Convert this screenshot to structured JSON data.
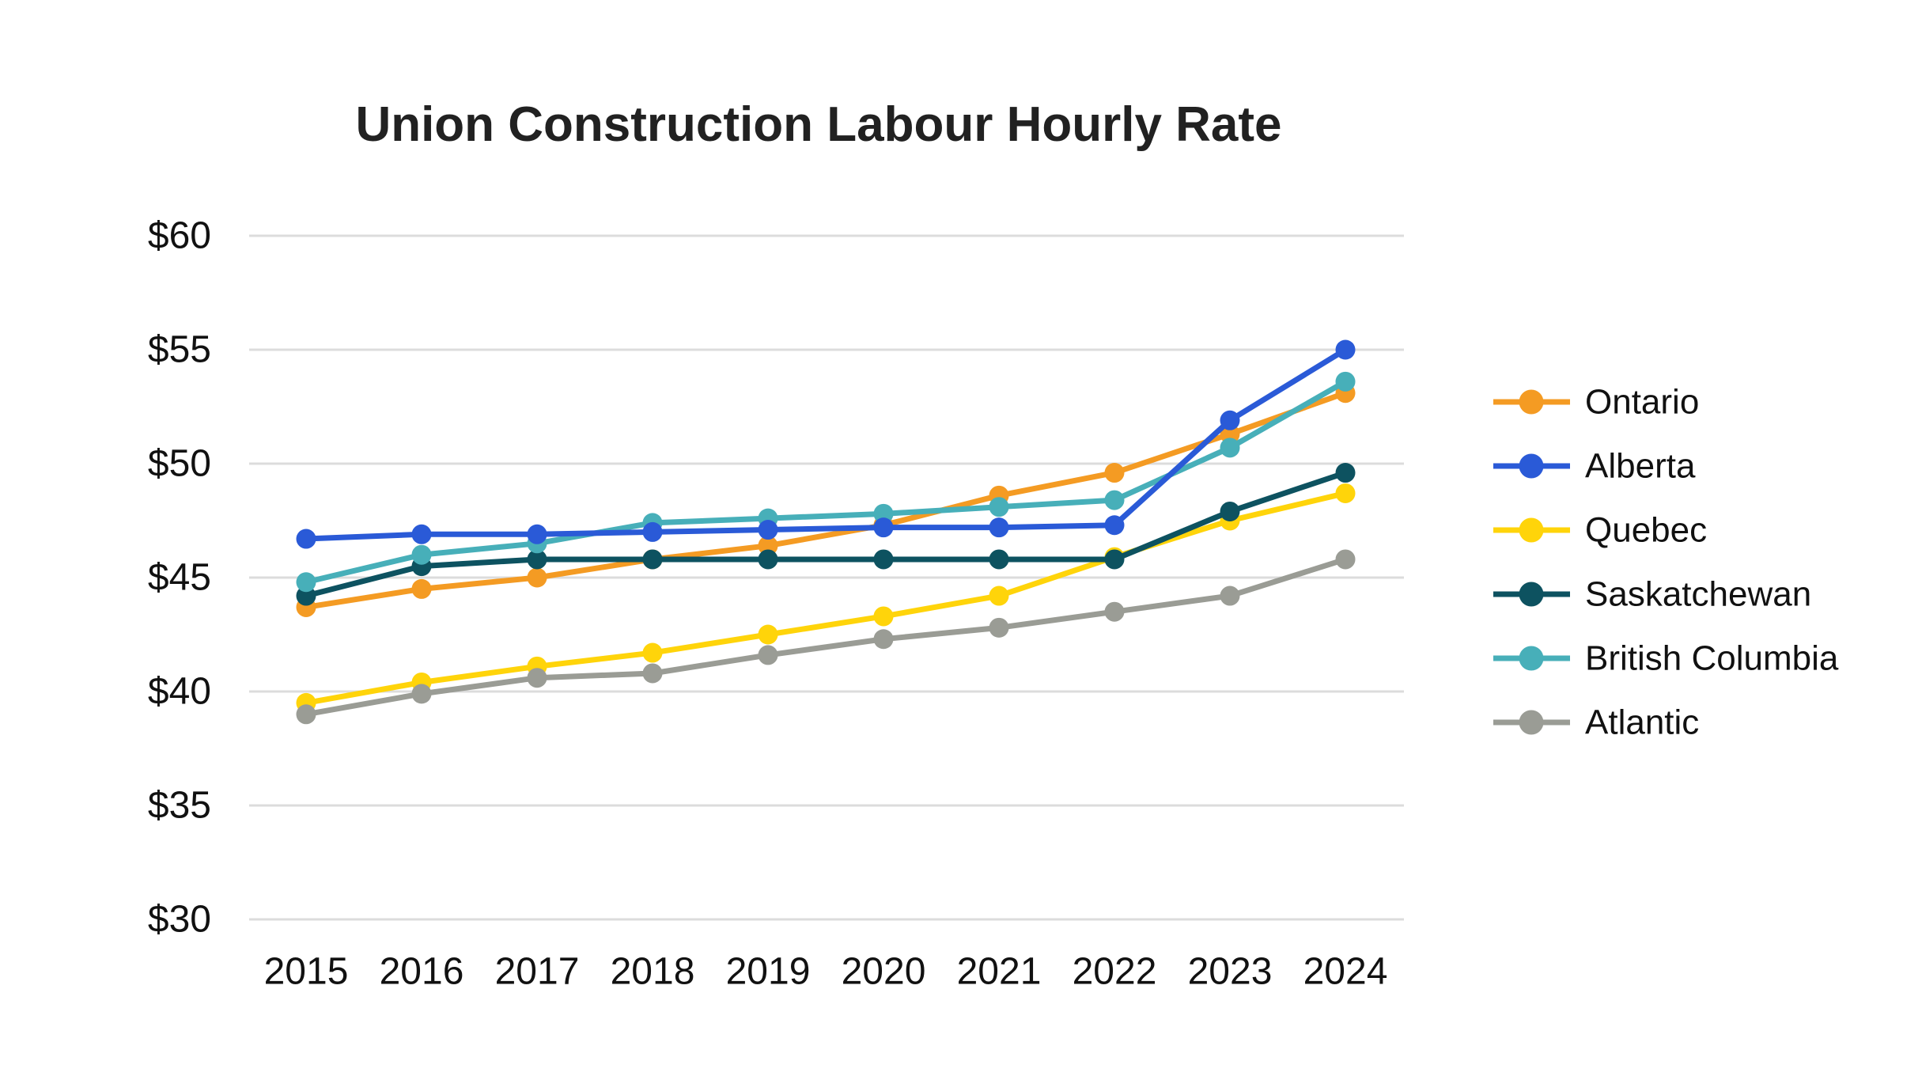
{
  "chart": {
    "title": "Union Construction Labour Hourly Rate",
    "background": "#ffffff",
    "gridline_color": "#dcdcdc",
    "text_color": "#111111",
    "title_color": "#212121"
  },
  "chart_data": {
    "type": "line",
    "x": [
      2015,
      2016,
      2017,
      2018,
      2019,
      2020,
      2021,
      2022,
      2023,
      2024
    ],
    "series": [
      {
        "name": "Ontario",
        "color": "#F49B23",
        "values": [
          43.7,
          44.5,
          45.0,
          45.8,
          46.4,
          47.3,
          48.6,
          49.6,
          51.3,
          53.1
        ]
      },
      {
        "name": "Alberta",
        "color": "#2A5AD7",
        "values": [
          46.7,
          46.9,
          46.9,
          47.0,
          47.1,
          47.2,
          47.2,
          47.3,
          51.9,
          55.0
        ]
      },
      {
        "name": "Quebec",
        "color": "#FFD40A",
        "values": [
          39.5,
          40.4,
          41.1,
          41.7,
          42.5,
          43.3,
          44.2,
          45.9,
          47.5,
          48.7
        ]
      },
      {
        "name": "Saskatchewan",
        "color": "#0D5260",
        "values": [
          44.2,
          45.5,
          45.8,
          45.8,
          45.8,
          45.8,
          45.8,
          45.8,
          47.9,
          49.6
        ]
      },
      {
        "name": "British Columbia",
        "color": "#47AFB9",
        "values": [
          44.8,
          46.0,
          46.5,
          47.4,
          47.6,
          47.8,
          48.1,
          48.4,
          50.7,
          53.6
        ]
      },
      {
        "name": "Atlantic",
        "color": "#9A9C95",
        "values": [
          39.0,
          39.9,
          40.6,
          40.8,
          41.6,
          42.3,
          42.8,
          43.5,
          44.2,
          45.8
        ]
      }
    ],
    "draw_order": [
      "Ontario",
      "Quebec",
      "Atlantic",
      "Saskatchewan",
      "British Columbia",
      "Alberta"
    ],
    "title": "Union Construction Labour Hourly Rate",
    "xlabel": "",
    "ylabel": "",
    "ylim": [
      30,
      60
    ],
    "y_ticks": [
      30,
      35,
      40,
      45,
      50,
      55,
      60
    ],
    "y_tick_labels": [
      "$30",
      "$35",
      "$40",
      "$45",
      "$50",
      "$55",
      "$60"
    ],
    "x_tick_labels": [
      "2015",
      "2016",
      "2017",
      "2018",
      "2019",
      "2020",
      "2021",
      "2022",
      "2023",
      "2024"
    ],
    "grid": "horizontal",
    "legend_position": "right"
  }
}
